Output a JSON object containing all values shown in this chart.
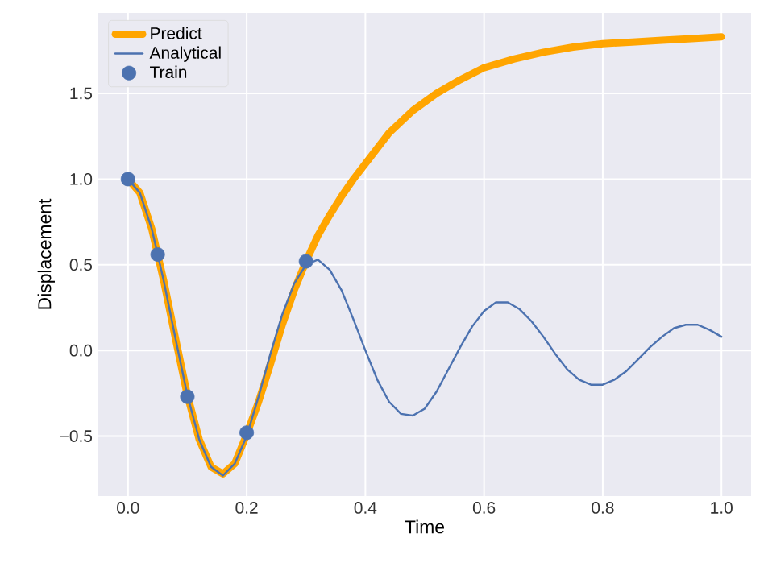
{
  "chart_data": {
    "type": "line",
    "xlabel": "Time",
    "ylabel": "Displacement",
    "xlim": [
      -0.05,
      1.05
    ],
    "ylim": [
      -0.85,
      1.97
    ],
    "xticks": [
      {
        "value": 0,
        "label": "0.0"
      },
      {
        "value": 0.2,
        "label": "0.2"
      },
      {
        "value": 0.4,
        "label": "0.4"
      },
      {
        "value": 0.6,
        "label": "0.6"
      },
      {
        "value": 0.8,
        "label": "0.8"
      },
      {
        "value": 1,
        "label": "1.0"
      }
    ],
    "yticks": [
      {
        "value": -0.5,
        "label": "−0.5"
      },
      {
        "value": 0,
        "label": "0.0"
      },
      {
        "value": 0.5,
        "label": "0.5"
      },
      {
        "value": 1,
        "label": "1.0"
      },
      {
        "value": 1.5,
        "label": "1.5"
      }
    ],
    "grid": true,
    "legend": "top left",
    "series": [
      {
        "name": "Predict",
        "color": "#ffa500",
        "x": [
          0,
          0.02,
          0.04,
          0.06,
          0.08,
          0.1,
          0.12,
          0.14,
          0.16,
          0.18,
          0.2,
          0.22,
          0.24,
          0.26,
          0.28,
          0.3,
          0.32,
          0.34,
          0.36,
          0.38,
          0.4,
          0.44,
          0.48,
          0.52,
          0.56,
          0.6,
          0.65,
          0.7,
          0.75,
          0.8,
          0.85,
          0.9,
          0.95,
          1.0
        ],
        "values": [
          1.0,
          0.92,
          0.71,
          0.41,
          0.07,
          -0.26,
          -0.52,
          -0.68,
          -0.72,
          -0.66,
          -0.49,
          -0.3,
          -0.08,
          0.15,
          0.35,
          0.52,
          0.67,
          0.79,
          0.9,
          1.0,
          1.09,
          1.27,
          1.4,
          1.5,
          1.58,
          1.65,
          1.7,
          1.74,
          1.77,
          1.79,
          1.8,
          1.81,
          1.82,
          1.83
        ]
      },
      {
        "name": "Analytical",
        "color": "#4c72b0",
        "x": [
          0,
          0.02,
          0.04,
          0.06,
          0.08,
          0.1,
          0.12,
          0.14,
          0.16,
          0.18,
          0.2,
          0.22,
          0.24,
          0.26,
          0.28,
          0.3,
          0.32,
          0.34,
          0.36,
          0.38,
          0.4,
          0.42,
          0.44,
          0.46,
          0.48,
          0.5,
          0.52,
          0.54,
          0.56,
          0.58,
          0.6,
          0.62,
          0.64,
          0.66,
          0.68,
          0.7,
          0.72,
          0.74,
          0.76,
          0.78,
          0.8,
          0.82,
          0.84,
          0.86,
          0.88,
          0.9,
          0.92,
          0.94,
          0.96,
          0.98,
          1.0
        ],
        "values": [
          1.0,
          0.92,
          0.71,
          0.41,
          0.07,
          -0.26,
          -0.52,
          -0.68,
          -0.73,
          -0.66,
          -0.5,
          -0.27,
          -0.02,
          0.21,
          0.39,
          0.5,
          0.53,
          0.47,
          0.35,
          0.18,
          0.0,
          -0.17,
          -0.3,
          -0.37,
          -0.38,
          -0.34,
          -0.24,
          -0.11,
          0.02,
          0.14,
          0.23,
          0.28,
          0.28,
          0.24,
          0.17,
          0.08,
          -0.02,
          -0.11,
          -0.17,
          -0.2,
          -0.2,
          -0.17,
          -0.12,
          -0.05,
          0.02,
          0.08,
          0.13,
          0.15,
          0.15,
          0.12,
          0.08
        ]
      },
      {
        "name": "Train",
        "type": "scatter",
        "marker": "circle",
        "color": "#4c72b0",
        "x": [
          0,
          0.05,
          0.1,
          0.2,
          0.3
        ],
        "values": [
          1.0,
          0.56,
          -0.27,
          -0.48,
          0.52
        ]
      }
    ]
  }
}
